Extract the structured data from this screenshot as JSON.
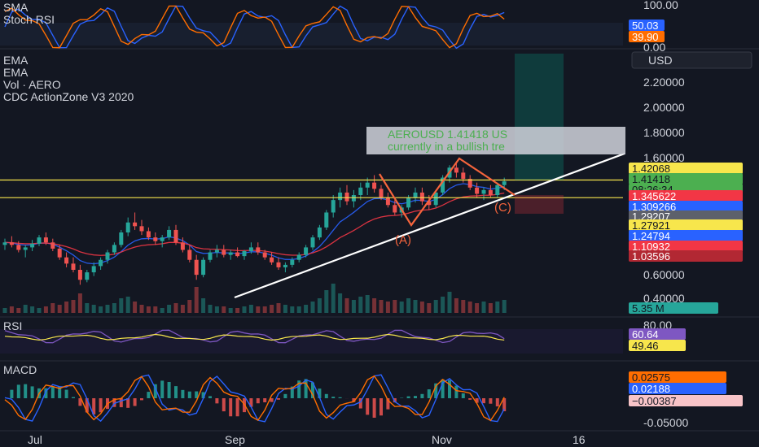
{
  "chart_data": {
    "type": "candlestick",
    "symbol": "AERO",
    "currency_button": "USD",
    "panes": {
      "stoch": {
        "labels": [
          "SMA",
          "Stoch RSI"
        ],
        "ticks": [
          "100.00",
          "0.00"
        ],
        "values": [
          50.03,
          39.9
        ],
        "value_labels": [
          "50.03",
          "39.90"
        ],
        "colors": [
          "#2962ff",
          "#ff6d00"
        ]
      },
      "price": {
        "labels": [
          "EMA",
          "EMA",
          "Vol · AERO",
          "CDC ActionZone V3 2020"
        ],
        "ticks": [
          "2.20000",
          "2.00000",
          "1.80000",
          "1.60000",
          "0.60000",
          "0.40000"
        ],
        "tick_values": [
          2.2,
          2.0,
          1.8,
          1.6,
          0.6,
          0.4
        ],
        "ylim": [
          0.3,
          2.5
        ],
        "price_tags": [
          {
            "text": "1.42068",
            "bg": "#f7e64c",
            "fg": "#131722"
          },
          {
            "text": "1.41418",
            "bg": "#4caf50",
            "fg": "#131722"
          },
          {
            "text": "08:26:34",
            "bg": "#4caf50",
            "fg": "#131722"
          },
          {
            "text": "1.345622",
            "bg": "#f23645",
            "fg": "#ffffff"
          },
          {
            "text": "1.309266",
            "bg": "#2962ff",
            "fg": "#ffffff"
          },
          {
            "text": "1.29207",
            "bg": "#5d606b",
            "fg": "#ffffff"
          },
          {
            "text": "1.27921",
            "bg": "#f7e64c",
            "fg": "#131722"
          },
          {
            "text": "1.24794",
            "bg": "#2962ff",
            "fg": "#ffffff"
          },
          {
            "text": "1.10932",
            "bg": "#f23645",
            "fg": "#ffffff"
          },
          {
            "text": "1.03596",
            "bg": "#b22833",
            "fg": "#ffffff"
          }
        ],
        "volume_tag": {
          "text": "5.35 M",
          "bg": "#26a69a",
          "fg": "#131722"
        },
        "horizontal_levels": [
          1.42068,
          1.27921
        ],
        "annotation": [
          "AEROUSD 1.41418 US",
          "currently in a bullish tre"
        ],
        "wave_labels": [
          "(A)",
          "(C)"
        ],
        "candles": [
          [
            0.9,
            0.95,
            0.86,
            0.92
          ],
          [
            0.92,
            0.97,
            0.88,
            0.9
          ],
          [
            0.9,
            0.93,
            0.84,
            0.86
          ],
          [
            0.86,
            0.9,
            0.8,
            0.88
          ],
          [
            0.88,
            0.94,
            0.85,
            0.91
          ],
          [
            0.91,
            0.98,
            0.89,
            0.96
          ],
          [
            0.96,
            1.0,
            0.9,
            0.92
          ],
          [
            0.92,
            0.95,
            0.85,
            0.87
          ],
          [
            0.87,
            0.9,
            0.78,
            0.8
          ],
          [
            0.8,
            0.84,
            0.72,
            0.75
          ],
          [
            0.75,
            0.8,
            0.68,
            0.7
          ],
          [
            0.7,
            0.74,
            0.58,
            0.62
          ],
          [
            0.62,
            0.7,
            0.6,
            0.68
          ],
          [
            0.68,
            0.76,
            0.65,
            0.73
          ],
          [
            0.73,
            0.8,
            0.7,
            0.78
          ],
          [
            0.78,
            0.86,
            0.75,
            0.84
          ],
          [
            0.84,
            0.92,
            0.82,
            0.9
          ],
          [
            0.9,
            1.02,
            0.88,
            1.0
          ],
          [
            1.0,
            1.12,
            0.97,
            1.08
          ],
          [
            1.08,
            1.16,
            1.02,
            1.05
          ],
          [
            1.05,
            1.1,
            0.98,
            1.01
          ],
          [
            1.01,
            1.04,
            0.94,
            0.96
          ],
          [
            0.96,
            1.0,
            0.9,
            0.93
          ],
          [
            0.93,
            0.98,
            0.88,
            0.96
          ],
          [
            0.96,
            1.05,
            0.94,
            1.02
          ],
          [
            1.02,
            1.06,
            0.9,
            0.92
          ],
          [
            0.92,
            0.96,
            0.84,
            0.86
          ],
          [
            0.86,
            0.9,
            0.76,
            0.78
          ],
          [
            0.78,
            0.82,
            0.62,
            0.66
          ],
          [
            0.66,
            0.8,
            0.64,
            0.78
          ],
          [
            0.78,
            0.86,
            0.76,
            0.84
          ],
          [
            0.84,
            0.9,
            0.8,
            0.86
          ],
          [
            0.86,
            0.9,
            0.8,
            0.82
          ],
          [
            0.82,
            0.86,
            0.78,
            0.84
          ],
          [
            0.84,
            0.88,
            0.8,
            0.81
          ],
          [
            0.81,
            0.86,
            0.78,
            0.85
          ],
          [
            0.85,
            0.92,
            0.83,
            0.88
          ],
          [
            0.88,
            0.92,
            0.82,
            0.84
          ],
          [
            0.84,
            0.86,
            0.78,
            0.8
          ],
          [
            0.8,
            0.84,
            0.74,
            0.76
          ],
          [
            0.76,
            0.8,
            0.7,
            0.72
          ],
          [
            0.72,
            0.76,
            0.68,
            0.74
          ],
          [
            0.74,
            0.8,
            0.72,
            0.78
          ],
          [
            0.78,
            0.84,
            0.76,
            0.82
          ],
          [
            0.82,
            0.9,
            0.8,
            0.88
          ],
          [
            0.88,
            0.98,
            0.86,
            0.96
          ],
          [
            0.96,
            1.06,
            0.94,
            1.04
          ],
          [
            1.04,
            1.18,
            1.02,
            1.16
          ],
          [
            1.16,
            1.3,
            1.12,
            1.26
          ],
          [
            1.26,
            1.36,
            1.2,
            1.32
          ],
          [
            1.32,
            1.38,
            1.22,
            1.25
          ],
          [
            1.25,
            1.34,
            1.2,
            1.3
          ],
          [
            1.3,
            1.4,
            1.26,
            1.36
          ],
          [
            1.36,
            1.44,
            1.3,
            1.4
          ],
          [
            1.4,
            1.46,
            1.32,
            1.35
          ],
          [
            1.35,
            1.38,
            1.26,
            1.28
          ],
          [
            1.28,
            1.32,
            1.2,
            1.22
          ],
          [
            1.22,
            1.26,
            1.14,
            1.16
          ],
          [
            1.16,
            1.22,
            1.12,
            1.2
          ],
          [
            1.2,
            1.3,
            1.18,
            1.28
          ],
          [
            1.28,
            1.36,
            1.24,
            1.32
          ],
          [
            1.32,
            1.36,
            1.22,
            1.25
          ],
          [
            1.25,
            1.3,
            1.18,
            1.22
          ],
          [
            1.22,
            1.34,
            1.2,
            1.32
          ],
          [
            1.32,
            1.46,
            1.3,
            1.44
          ],
          [
            1.44,
            1.54,
            1.4,
            1.52
          ],
          [
            1.52,
            1.56,
            1.44,
            1.48
          ],
          [
            1.48,
            1.52,
            1.4,
            1.43
          ],
          [
            1.43,
            1.46,
            1.34,
            1.36
          ],
          [
            1.36,
            1.4,
            1.28,
            1.31
          ],
          [
            1.31,
            1.36,
            1.26,
            1.34
          ],
          [
            1.34,
            1.38,
            1.28,
            1.3
          ],
          [
            1.3,
            1.4,
            1.28,
            1.38
          ],
          [
            1.38,
            1.44,
            1.34,
            1.41
          ]
        ],
        "volumes": [
          3,
          4,
          3,
          5,
          4,
          3,
          4,
          6,
          5,
          7,
          8,
          12,
          6,
          5,
          4,
          5,
          6,
          9,
          10,
          7,
          5,
          4,
          4,
          3,
          5,
          6,
          5,
          8,
          16,
          9,
          5,
          4,
          4,
          3,
          3,
          4,
          5,
          4,
          4,
          5,
          6,
          5,
          4,
          4,
          5,
          7,
          9,
          14,
          18,
          12,
          9,
          8,
          10,
          11,
          9,
          8,
          7,
          8,
          7,
          9,
          8,
          7,
          6,
          8,
          10,
          13,
          9,
          8,
          7,
          6,
          7,
          6,
          7,
          8
        ]
      },
      "rsi": {
        "label": "RSI",
        "ticks": [
          "80.00"
        ],
        "values": [
          60.64,
          49.46
        ],
        "value_labels": [
          "60.64",
          "49.46"
        ],
        "colors": [
          "#7e57c2",
          "#f7e64c"
        ]
      },
      "macd": {
        "label": "MACD",
        "ticks": [
          "-0.05000"
        ],
        "values": [
          0.02575,
          0.02188,
          -0.00387
        ],
        "value_labels": [
          "0.02575",
          "0.02188",
          "−0.00387"
        ],
        "colors": [
          "#ff6d00",
          "#2962ff",
          "#f8c4c8"
        ]
      }
    },
    "x_ticks": [
      "Jul",
      "Sep",
      "Nov",
      "16"
    ]
  }
}
